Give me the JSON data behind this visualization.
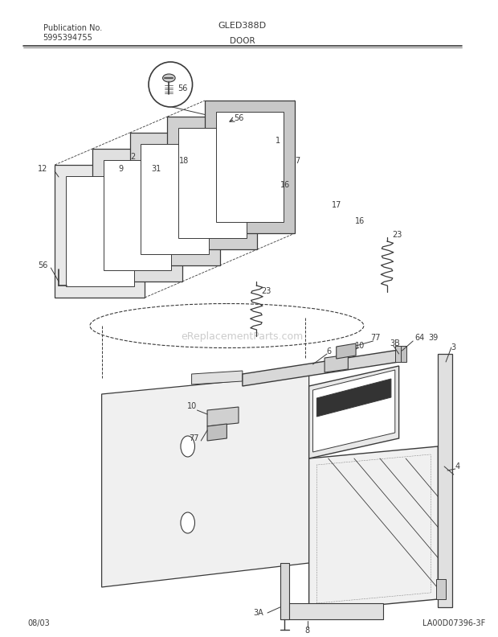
{
  "title_left1": "Publication No.",
  "title_left2": "5995394755",
  "title_center": "GLED388D",
  "title_section": "DOOR",
  "footer_left": "08/03",
  "footer_right": "LA00D07396-3F",
  "bg_color": "#ffffff",
  "line_color": "#3a3a3a",
  "text_color": "#3a3a3a",
  "watermark": "eReplacementParts.com",
  "watermark_color": "#cccccc",
  "fig_w": 6.2,
  "fig_h": 7.92,
  "dpi": 100
}
